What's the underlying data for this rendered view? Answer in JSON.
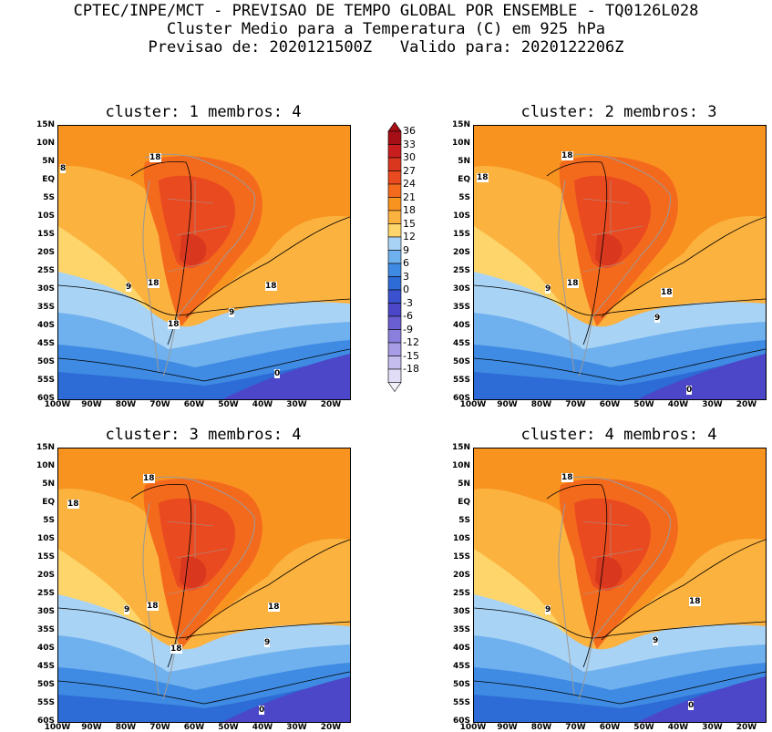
{
  "header": {
    "line1": "CPTEC/INPE/MCT - PREVISAO DE TEMPO GLOBAL POR ENSEMBLE - TQ0126L028",
    "line2": "Cluster Medio para a Temperatura (C) em 925 hPa",
    "line3": "Previsao de: 2020121500Z   Valido para: 2020122206Z"
  },
  "panels": [
    {
      "title": "cluster: 1  membros: 4",
      "contour_labels": [
        "18",
        "8",
        "18",
        "9",
        "18",
        "18",
        "9",
        "0"
      ]
    },
    {
      "title": "cluster: 2  membros: 3",
      "contour_labels": [
        "18",
        "18",
        "9",
        "18",
        "18",
        "9",
        "0"
      ]
    },
    {
      "title": "cluster: 3  membros: 4",
      "contour_labels": [
        "18",
        "18",
        "9",
        "18",
        "18",
        "18",
        "9",
        "0"
      ]
    },
    {
      "title": "cluster: 4  membros: 4",
      "contour_labels": [
        "18",
        "9",
        "18",
        "9",
        "0"
      ]
    }
  ],
  "axes": {
    "y_ticks": [
      "15N",
      "10N",
      "5N",
      "EQ",
      "5S",
      "10S",
      "15S",
      "20S",
      "25S",
      "30S",
      "35S",
      "40S",
      "45S",
      "50S",
      "55S",
      "60S"
    ],
    "x_ticks": [
      "100W",
      "90W",
      "80W",
      "70W",
      "60W",
      "50W",
      "40W",
      "30W",
      "20W"
    ]
  },
  "colorbar": {
    "labels": [
      "36",
      "33",
      "30",
      "27",
      "24",
      "21",
      "18",
      "15",
      "12",
      "9",
      "6",
      "3",
      "0",
      "-3",
      "-6",
      "-9",
      "-12",
      "-15",
      "-18"
    ],
    "colors": [
      "#a50f15",
      "#c81e1e",
      "#d9381e",
      "#ea4a1f",
      "#f46a1d",
      "#f99320",
      "#fbb23f",
      "#fed56a",
      "#a8d3f5",
      "#6fb0ee",
      "#3f8be3",
      "#2d6bd6",
      "#3a52cf",
      "#4b47c8",
      "#6a5fd2",
      "#8a7fdc",
      "#a79de6",
      "#c5bdee",
      "#e2ddf6"
    ]
  },
  "chart_data": {
    "type": "heatmap",
    "variable": "Temperatura (C) em 925 hPa",
    "contour_levels": [
      -18,
      -15,
      -12,
      -9,
      -6,
      -3,
      0,
      3,
      6,
      9,
      12,
      15,
      18,
      21,
      24,
      27,
      30,
      33,
      36
    ],
    "lon_range": [
      "100W",
      "20W"
    ],
    "lat_range": [
      "60S",
      "15N"
    ]
  }
}
